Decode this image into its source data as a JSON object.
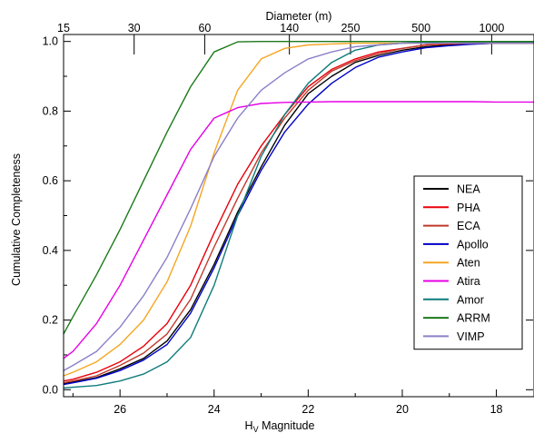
{
  "chart_data": {
    "type": "line",
    "top_axis": {
      "label": "Diameter (m)",
      "ticks": [
        {
          "label": "15",
          "at": 27.2
        },
        {
          "label": "30",
          "at": 25.7
        },
        {
          "label": "60",
          "at": 24.2
        },
        {
          "label": "140",
          "at": 22.4
        },
        {
          "label": "250",
          "at": 21.1
        },
        {
          "label": "500",
          "at": 19.6
        },
        {
          "label": "1000",
          "at": 18.1
        }
      ]
    },
    "xlabel": "H",
    "xlabel_sub": "V",
    "xlabel_tail": " Magnitude",
    "ylabel": "Cumulative Completeness",
    "xlim": [
      27.2,
      17.2
    ],
    "ylim": [
      -0.02,
      1.02
    ],
    "xticks": [
      26,
      24,
      22,
      20,
      18
    ],
    "yticks": [
      0.0,
      0.2,
      0.4,
      0.6,
      0.8,
      1.0
    ],
    "ytick_labels": [
      "0.0",
      "0.2",
      "0.4",
      "0.6",
      "0.8",
      "1.0"
    ],
    "legend_position": "lower-right",
    "x": [
      27.2,
      27,
      26.5,
      26,
      25.5,
      25,
      24.5,
      24,
      23.5,
      23,
      22.5,
      22,
      21.5,
      21,
      20.5,
      20,
      19.5,
      19,
      18.5,
      18,
      17.5,
      17.2
    ],
    "series": [
      {
        "name": "NEA",
        "color": "#000000",
        "values": [
          0.018,
          0.022,
          0.035,
          0.06,
          0.09,
          0.14,
          0.23,
          0.36,
          0.51,
          0.64,
          0.76,
          0.85,
          0.9,
          0.94,
          0.96,
          0.975,
          0.985,
          0.99,
          0.993,
          0.995,
          0.995,
          0.995
        ]
      },
      {
        "name": "PHA",
        "color": "#e8000b",
        "values": [
          0.025,
          0.03,
          0.05,
          0.08,
          0.125,
          0.19,
          0.3,
          0.45,
          0.59,
          0.7,
          0.79,
          0.87,
          0.92,
          0.95,
          0.97,
          0.98,
          0.99,
          0.993,
          0.995,
          0.995,
          0.995,
          0.995
        ]
      },
      {
        "name": "ECA",
        "color": "#c0392b",
        "values": [
          0.02,
          0.025,
          0.04,
          0.07,
          0.105,
          0.16,
          0.26,
          0.41,
          0.55,
          0.68,
          0.78,
          0.86,
          0.915,
          0.945,
          0.965,
          0.98,
          0.99,
          0.995,
          0.997,
          0.998,
          0.998,
          0.998
        ]
      },
      {
        "name": "Apollo",
        "color": "#0000c8",
        "values": [
          0.015,
          0.02,
          0.033,
          0.055,
          0.085,
          0.13,
          0.22,
          0.35,
          0.5,
          0.63,
          0.74,
          0.82,
          0.88,
          0.925,
          0.955,
          0.97,
          0.982,
          0.988,
          0.992,
          0.995,
          0.995,
          0.995
        ]
      },
      {
        "name": "Aten",
        "color": "#f5a623",
        "values": [
          0.04,
          0.05,
          0.08,
          0.13,
          0.2,
          0.31,
          0.47,
          0.68,
          0.86,
          0.95,
          0.98,
          0.99,
          0.993,
          0.995,
          0.995,
          0.995,
          0.995,
          0.995,
          0.995,
          0.995,
          0.995,
          0.995
        ]
      },
      {
        "name": "Atira",
        "color": "#e600e6",
        "values": [
          0.09,
          0.11,
          0.19,
          0.3,
          0.43,
          0.56,
          0.69,
          0.78,
          0.81,
          0.822,
          0.825,
          0.826,
          0.827,
          0.827,
          0.827,
          0.827,
          0.827,
          0.827,
          0.827,
          0.826,
          0.826,
          0.826
        ]
      },
      {
        "name": "Amor",
        "color": "#0e7c7b",
        "values": [
          0.005,
          0.007,
          0.012,
          0.025,
          0.045,
          0.08,
          0.15,
          0.3,
          0.5,
          0.67,
          0.79,
          0.88,
          0.94,
          0.975,
          0.99,
          0.995,
          0.998,
          0.999,
          0.999,
          0.999,
          0.999,
          0.999
        ]
      },
      {
        "name": "ARRM",
        "color": "#1b7a1b",
        "values": [
          0.16,
          0.21,
          0.33,
          0.46,
          0.6,
          0.74,
          0.87,
          0.97,
          0.999,
          1.0,
          1.0,
          1.0,
          1.0,
          1.0,
          1.0,
          1.0,
          1.0,
          1.0,
          1.0,
          1.0,
          1.0,
          1.0
        ]
      },
      {
        "name": "VIMP",
        "color": "#8c7fc8",
        "values": [
          0.055,
          0.07,
          0.11,
          0.18,
          0.27,
          0.38,
          0.52,
          0.67,
          0.78,
          0.86,
          0.91,
          0.95,
          0.97,
          0.985,
          0.99,
          0.995,
          0.995,
          0.995,
          0.995,
          0.995,
          0.995,
          0.995
        ]
      }
    ]
  }
}
